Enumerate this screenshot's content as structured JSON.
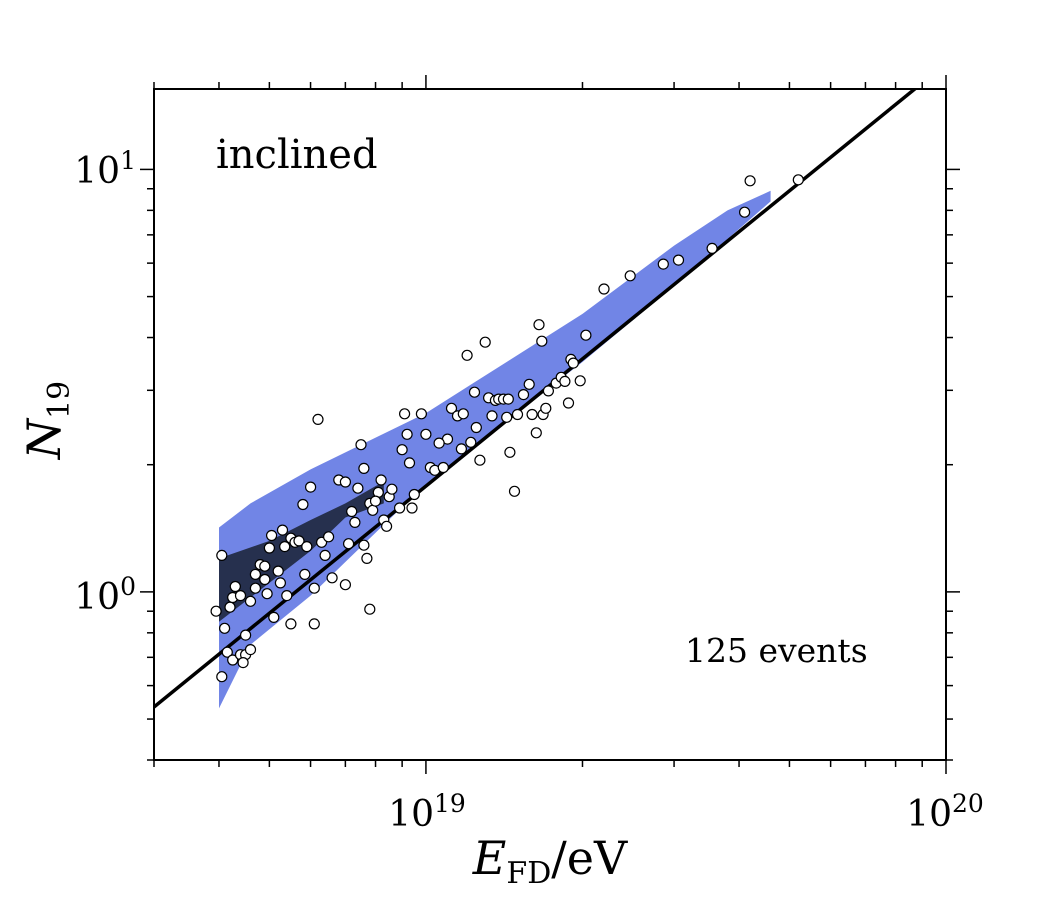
{
  "chart_data": {
    "type": "scatter",
    "xscale": "log",
    "yscale": "log",
    "xlim": [
      3e+18,
      1e+20
    ],
    "ylim": [
      0.4,
      15.5
    ],
    "xlabel": {
      "main": "E",
      "sub": "FD",
      "unit": "/eV"
    },
    "ylabel": {
      "main": "N",
      "sub": "19"
    },
    "xticks": [
      {
        "value": 1e+19,
        "base": "10",
        "exp": "19"
      },
      {
        "value": 1e+20,
        "base": "10",
        "exp": "20"
      }
    ],
    "yticks": [
      {
        "value": 1,
        "base": "10",
        "exp": "0"
      },
      {
        "value": 10,
        "base": "10",
        "exp": "1"
      }
    ],
    "annotation_topleft": "inclined",
    "annotation_bottomright": "125 events",
    "colors": {
      "outer_band": "#7185e6",
      "inner_band": "#26304e",
      "fit_line": "#000000",
      "points_fill": "#ffffff",
      "points_edge": "#000000"
    },
    "fit_line": {
      "slope": 1.0,
      "n19_at_1e19": 1.78,
      "x_range": [
        3e+18,
        1e+20
      ]
    },
    "outer_band": {
      "upper": [
        [
          4e+18,
          1.42
        ],
        [
          4.6e+18,
          1.62
        ],
        [
          6e+18,
          1.95
        ],
        [
          1e+19,
          2.65
        ],
        [
          2e+19,
          4.55
        ],
        [
          3e+19,
          6.6
        ],
        [
          3.8e+19,
          8.0
        ],
        [
          4.6e+19,
          8.9
        ]
      ],
      "lower": [
        [
          4.6e+19,
          8.4
        ],
        [
          3e+19,
          5.3
        ],
        [
          2e+19,
          3.5
        ],
        [
          1e+19,
          1.8
        ],
        [
          6e+18,
          0.98
        ],
        [
          4.6e+18,
          0.75
        ],
        [
          4e+18,
          0.53
        ]
      ]
    },
    "inner_band": {
      "upper": [
        [
          4e+18,
          1.2
        ],
        [
          5e+18,
          1.32
        ],
        [
          6e+18,
          1.48
        ],
        [
          7e+18,
          1.62
        ],
        [
          8e+18,
          1.78
        ],
        [
          8.3e+18,
          1.82
        ]
      ],
      "lower": [
        [
          8.3e+18,
          1.62
        ],
        [
          7e+18,
          1.5
        ],
        [
          6e+18,
          1.25
        ],
        [
          5e+18,
          1.05
        ],
        [
          4e+18,
          0.85
        ]
      ]
    },
    "points": [
      [
        4.05e+18,
        1.22
      ],
      [
        3.95e+18,
        0.9
      ],
      [
        4.1e+18,
        0.82
      ],
      [
        4.2e+18,
        0.92
      ],
      [
        4.25e+18,
        0.97
      ],
      [
        4.3e+18,
        1.03
      ],
      [
        4.4e+18,
        0.98
      ],
      [
        4.15e+18,
        0.72
      ],
      [
        4.25e+18,
        0.69
      ],
      [
        4.4e+18,
        0.71
      ],
      [
        4.5e+18,
        0.71
      ],
      [
        4.6e+18,
        0.73
      ],
      [
        4.05e+18,
        0.63
      ],
      [
        4.45e+18,
        0.68
      ],
      [
        4.5e+18,
        0.79
      ],
      [
        4.6e+18,
        0.95
      ],
      [
        4.7e+18,
        1.02
      ],
      [
        4.7e+18,
        1.1
      ],
      [
        4.8e+18,
        1.16
      ],
      [
        4.9e+18,
        1.07
      ],
      [
        4.95e+18,
        0.99
      ],
      [
        5e+18,
        1.27
      ],
      [
        5.05e+18,
        1.36
      ],
      [
        5.1e+18,
        0.87
      ],
      [
        5.2e+18,
        1.12
      ],
      [
        5.25e+18,
        1.05
      ],
      [
        5.35e+18,
        1.28
      ],
      [
        5.4e+18,
        0.98
      ],
      [
        5.5e+18,
        1.34
      ],
      [
        5.6e+18,
        1.31
      ],
      [
        5.5e+18,
        0.84
      ],
      [
        5.7e+18,
        1.32
      ],
      [
        5.8e+18,
        1.61
      ],
      [
        5.85e+18,
        1.1
      ],
      [
        5.9e+18,
        1.28
      ],
      [
        6e+18,
        1.77
      ],
      [
        6.1e+18,
        1.02
      ],
      [
        6.2e+18,
        2.56
      ],
      [
        6.3e+18,
        1.31
      ],
      [
        6.1e+18,
        0.84
      ],
      [
        6.5e+18,
        1.35
      ],
      [
        6.6e+18,
        1.08
      ],
      [
        6.8e+18,
        1.84
      ],
      [
        7e+18,
        1.04
      ],
      [
        7.1e+18,
        1.3
      ],
      [
        7e+18,
        1.82
      ],
      [
        7.3e+18,
        1.46
      ],
      [
        7.4e+18,
        1.76
      ],
      [
        7.5e+18,
        2.23
      ],
      [
        7.6e+18,
        1.96
      ],
      [
        7.6e+18,
        1.29
      ],
      [
        7.7e+18,
        1.2
      ],
      [
        7.8e+18,
        1.62
      ],
      [
        7.8e+18,
        0.91
      ],
      [
        7.9e+18,
        1.56
      ],
      [
        8.1e+18,
        1.72
      ],
      [
        8.2e+18,
        1.84
      ],
      [
        8.3e+18,
        1.48
      ],
      [
        8.4e+18,
        1.43
      ],
      [
        8.5e+18,
        1.68
      ],
      [
        8.6e+18,
        1.75
      ],
      [
        8.9e+18,
        1.58
      ],
      [
        9e+18,
        2.17
      ],
      [
        9.1e+18,
        2.64
      ],
      [
        9.2e+18,
        2.36
      ],
      [
        9.4e+18,
        1.58
      ],
      [
        9.5e+18,
        1.7
      ],
      [
        9.8e+18,
        2.64
      ],
      [
        1e+19,
        2.36
      ],
      [
        1.02e+19,
        1.97
      ],
      [
        1.04e+19,
        1.94
      ],
      [
        1.08e+19,
        1.97
      ],
      [
        1.1e+19,
        2.3
      ],
      [
        1.12e+19,
        2.72
      ],
      [
        1.15e+19,
        2.61
      ],
      [
        1.17e+19,
        2.18
      ],
      [
        1.18e+19,
        2.64
      ],
      [
        1.2e+19,
        3.63
      ],
      [
        1.22e+19,
        2.26
      ],
      [
        1.24e+19,
        2.97
      ],
      [
        1.27e+19,
        2.05
      ],
      [
        1.3e+19,
        3.9
      ],
      [
        1.32e+19,
        2.88
      ],
      [
        1.34e+19,
        2.61
      ],
      [
        1.36e+19,
        2.84
      ],
      [
        1.38e+19,
        2.86
      ],
      [
        1.41e+19,
        2.86
      ],
      [
        1.43e+19,
        2.59
      ],
      [
        1.44e+19,
        2.86
      ],
      [
        1.45e+19,
        2.14
      ],
      [
        1.48e+19,
        1.73
      ],
      [
        1.5e+19,
        2.63
      ],
      [
        1.58e+19,
        3.1
      ],
      [
        1.6e+19,
        2.63
      ],
      [
        1.63e+19,
        2.38
      ],
      [
        1.65e+19,
        4.29
      ],
      [
        1.67e+19,
        3.92
      ],
      [
        1.68e+19,
        2.63
      ],
      [
        1.7e+19,
        2.72
      ],
      [
        1.72e+19,
        2.99
      ],
      [
        1.78e+19,
        3.12
      ],
      [
        1.82e+19,
        3.22
      ],
      [
        1.85e+19,
        3.15
      ],
      [
        1.88e+19,
        2.8
      ],
      [
        1.9e+19,
        3.55
      ],
      [
        1.92e+19,
        3.48
      ],
      [
        1.98e+19,
        3.16
      ],
      [
        2.03e+19,
        4.05
      ],
      [
        2.2e+19,
        5.21
      ],
      [
        2.47e+19,
        5.6
      ],
      [
        2.86e+19,
        5.97
      ],
      [
        3.06e+19,
        6.1
      ],
      [
        3.55e+19,
        6.5
      ],
      [
        4.1e+19,
        7.92
      ],
      [
        4.2e+19,
        9.4
      ],
      [
        5.2e+19,
        9.45
      ],
      [
        4.9e+18,
        1.15
      ],
      [
        5.3e+18,
        1.4
      ],
      [
        6.4e+18,
        1.22
      ],
      [
        7.2e+18,
        1.55
      ],
      [
        8e+18,
        1.64
      ],
      [
        9.3e+18,
        2.02
      ],
      [
        1.06e+19,
        2.25
      ],
      [
        1.25e+19,
        2.45
      ],
      [
        1.54e+19,
        2.93
      ]
    ]
  }
}
